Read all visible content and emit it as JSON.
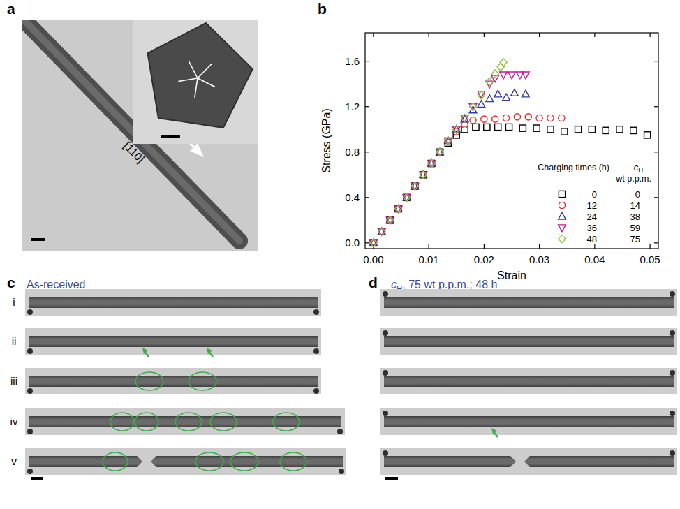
{
  "panel_labels": [
    "a",
    "b",
    "c",
    "d"
  ],
  "panel_a": {
    "direction_label": "[110]"
  },
  "chart_data": {
    "type": "scatter",
    "x_label": "Strain",
    "y_label": "Stress (GPa)",
    "xlim": [
      -0.0015,
      0.0515
    ],
    "ylim": [
      -0.05,
      1.85
    ],
    "xticks": [
      {
        "value": 0,
        "label": "0.00"
      },
      0.01,
      0.02,
      0.03,
      0.04,
      0.05
    ],
    "yticks": [
      {
        "value": 0,
        "label": "0.0"
      },
      0.4,
      0.8,
      1.2,
      1.6
    ],
    "grid": false,
    "legend": "lower right",
    "legend_title": "Charging times (h)",
    "legend_title_2_symbol": "c",
    "legend_title_2_subscript": "H",
    "legend_title_2_unit": "wt p.p.m.",
    "series": [
      {
        "name": "0",
        "c_H": 0,
        "color": "#000000",
        "marker": "square",
        "x": [
          0,
          0.0015,
          0.003,
          0.0045,
          0.006,
          0.0075,
          0.009,
          0.0105,
          0.012,
          0.0135,
          0.015,
          0.0165,
          0.0185,
          0.0205,
          0.0225,
          0.0245,
          0.027,
          0.0295,
          0.032,
          0.0345,
          0.037,
          0.0395,
          0.042,
          0.0445,
          0.047,
          0.0495
        ],
        "values": [
          0,
          0.1,
          0.2,
          0.3,
          0.4,
          0.5,
          0.6,
          0.7,
          0.8,
          0.88,
          0.95,
          1.0,
          1.02,
          1.02,
          1.02,
          1.02,
          1.01,
          1.01,
          1.0,
          0.98,
          1.0,
          1.0,
          0.99,
          1.0,
          0.99,
          0.95
        ]
      },
      {
        "name": "12",
        "c_H": 14,
        "color": "#e8262a",
        "marker": "circle",
        "x": [
          0,
          0.0015,
          0.003,
          0.0045,
          0.006,
          0.0075,
          0.009,
          0.0105,
          0.012,
          0.0135,
          0.015,
          0.0165,
          0.018,
          0.02,
          0.022,
          0.024,
          0.026,
          0.028,
          0.03,
          0.032,
          0.034
        ],
        "values": [
          0,
          0.1,
          0.2,
          0.3,
          0.4,
          0.5,
          0.6,
          0.7,
          0.8,
          0.9,
          0.98,
          1.04,
          1.08,
          1.09,
          1.09,
          1.1,
          1.11,
          1.11,
          1.1,
          1.1,
          1.1
        ]
      },
      {
        "name": "24",
        "c_H": 38,
        "color": "#35399a",
        "marker": "triangle-up",
        "x": [
          0,
          0.0015,
          0.003,
          0.0045,
          0.006,
          0.0075,
          0.009,
          0.0105,
          0.012,
          0.0135,
          0.015,
          0.0165,
          0.018,
          0.0195,
          0.021,
          0.0225,
          0.024,
          0.0255,
          0.0275
        ],
        "values": [
          0,
          0.1,
          0.2,
          0.3,
          0.4,
          0.5,
          0.6,
          0.7,
          0.8,
          0.9,
          1.0,
          1.09,
          1.17,
          1.22,
          1.27,
          1.31,
          1.28,
          1.32,
          1.31
        ]
      },
      {
        "name": "36",
        "c_H": 59,
        "color": "#c4169b",
        "marker": "triangle-down",
        "x": [
          0,
          0.0015,
          0.003,
          0.0045,
          0.006,
          0.0075,
          0.009,
          0.0105,
          0.012,
          0.0135,
          0.015,
          0.0165,
          0.018,
          0.0195,
          0.021,
          0.022,
          0.0235,
          0.025,
          0.0265,
          0.0275
        ],
        "values": [
          0,
          0.1,
          0.2,
          0.3,
          0.4,
          0.5,
          0.6,
          0.7,
          0.8,
          0.9,
          1.0,
          1.1,
          1.2,
          1.31,
          1.4,
          1.45,
          1.48,
          1.48,
          1.48,
          1.48
        ]
      },
      {
        "name": "48",
        "c_H": 75,
        "color": "#8dc63f",
        "marker": "diamond",
        "x": [
          0,
          0.0015,
          0.003,
          0.0045,
          0.006,
          0.0075,
          0.009,
          0.0105,
          0.012,
          0.0135,
          0.015,
          0.0165,
          0.018,
          0.0195,
          0.021,
          0.022,
          0.023,
          0.0235
        ],
        "values": [
          0,
          0.1,
          0.2,
          0.3,
          0.4,
          0.5,
          0.6,
          0.7,
          0.8,
          0.9,
          1.0,
          1.1,
          1.2,
          1.3,
          1.42,
          1.49,
          1.55,
          1.59
        ]
      }
    ]
  },
  "panel_c": {
    "title": "As-received",
    "row_labels": [
      "i",
      "ii",
      "iii",
      "iv",
      "v"
    ]
  },
  "panel_d": {
    "title_symbol": "c",
    "title_subscript": "H",
    "title_text": ", 75 wt p.p.m.; 48 h"
  }
}
